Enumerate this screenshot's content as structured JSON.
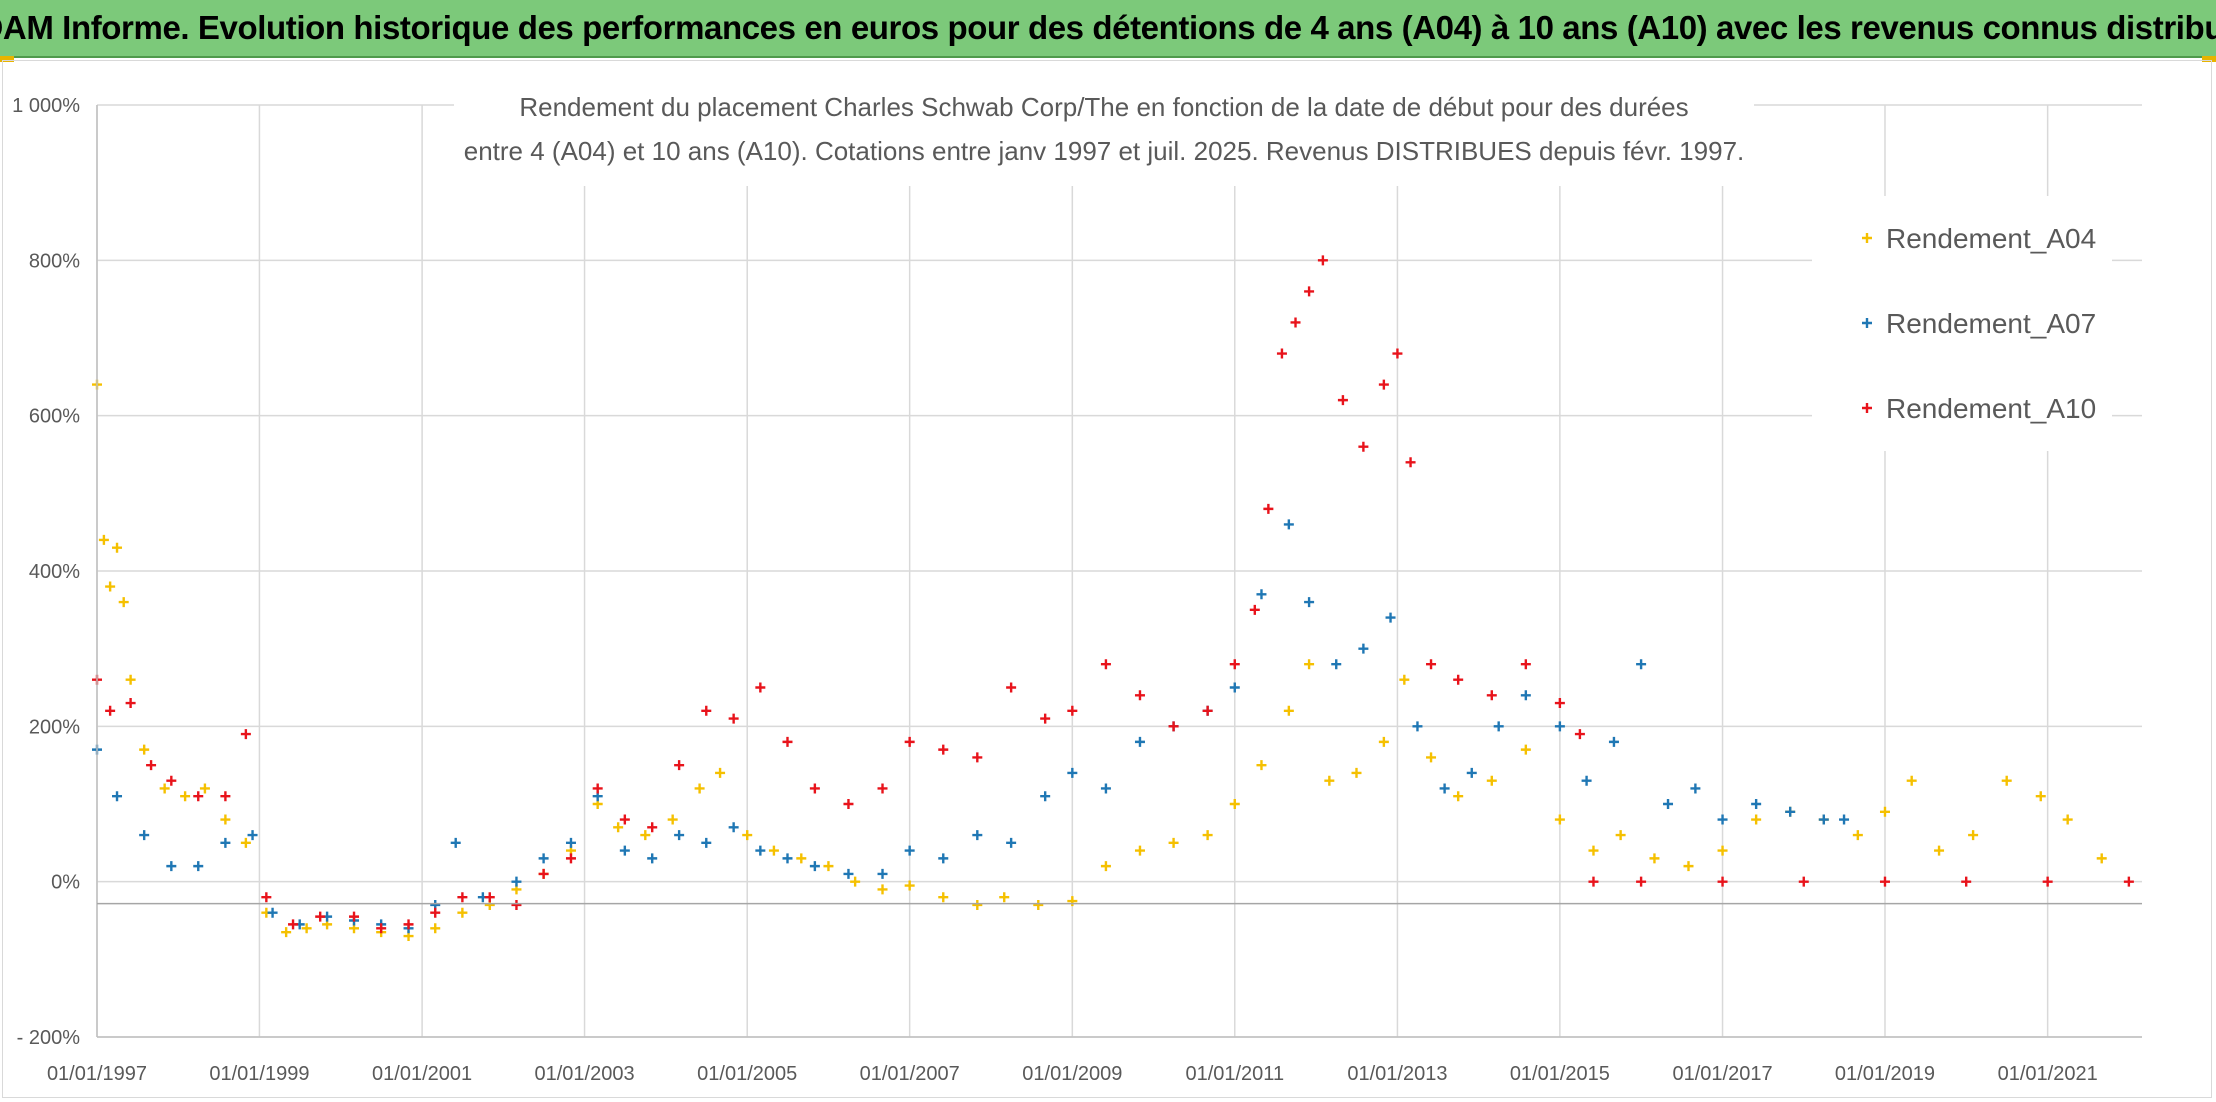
{
  "banner": {
    "title": "ADAM Informe. Evolution historique des performances en euros pour des détentions de 4 ans (A04) à 10 ans (A10) avec les revenus connus distribués"
  },
  "chart_data": {
    "type": "scatter",
    "title_lines": [
      "Rendement du placement Charles Schwab Corp/The en fonction de la date de début pour des durées",
      "entre 4 (A04) et 10 ans (A10). Cotations entre janv 1997 et juil. 2025. Revenus DISTRIBUES depuis févr. 1997."
    ],
    "xlabel": "",
    "ylabel": "",
    "xlim": [
      "1997-01-01",
      "2022-03-01"
    ],
    "ylim": [
      -200,
      1000
    ],
    "y_unit": "%",
    "y_ticks": [
      {
        "value": 1000,
        "label": "1 000%"
      },
      {
        "value": 800,
        "label": "800%"
      },
      {
        "value": 600,
        "label": "600%"
      },
      {
        "value": 400,
        "label": "400%"
      },
      {
        "value": 200,
        "label": "200%"
      },
      {
        "value": 0,
        "label": "0%"
      },
      {
        "value": -200,
        "label": "- 200%"
      }
    ],
    "x_ticks": [
      "01/01/1997",
      "01/01/1999",
      "01/01/2001",
      "01/01/2003",
      "01/01/2005",
      "01/01/2007",
      "01/01/2009",
      "01/01/2011",
      "01/01/2013",
      "01/01/2015",
      "01/01/2017",
      "01/01/2019",
      "01/01/2021"
    ],
    "grid": true,
    "marker": "+",
    "legend_position": "right",
    "series": [
      {
        "name": "Rendement_A04",
        "color": "#f5c000",
        "points": [
          [
            "1997-01-01",
            640
          ],
          [
            "1997-02-01",
            440
          ],
          [
            "1997-03-01",
            380
          ],
          [
            "1997-04-01",
            430
          ],
          [
            "1997-05-01",
            360
          ],
          [
            "1997-06-01",
            260
          ],
          [
            "1997-08-01",
            170
          ],
          [
            "1997-11-01",
            120
          ],
          [
            "1998-02-01",
            110
          ],
          [
            "1998-05-01",
            120
          ],
          [
            "1998-08-01",
            80
          ],
          [
            "1998-11-01",
            50
          ],
          [
            "1999-02-01",
            -40
          ],
          [
            "1999-05-01",
            -65
          ],
          [
            "1999-08-01",
            -60
          ],
          [
            "1999-11-01",
            -55
          ],
          [
            "2000-03-01",
            -60
          ],
          [
            "2000-07-01",
            -65
          ],
          [
            "2000-11-01",
            -70
          ],
          [
            "2001-03-01",
            -60
          ],
          [
            "2001-07-01",
            -40
          ],
          [
            "2001-11-01",
            -30
          ],
          [
            "2002-03-01",
            -10
          ],
          [
            "2002-07-01",
            10
          ],
          [
            "2002-11-01",
            40
          ],
          [
            "2003-03-01",
            100
          ],
          [
            "2003-06-01",
            70
          ],
          [
            "2003-10-01",
            60
          ],
          [
            "2004-02-01",
            80
          ],
          [
            "2004-06-01",
            120
          ],
          [
            "2004-09-01",
            140
          ],
          [
            "2005-01-01",
            60
          ],
          [
            "2005-05-01",
            40
          ],
          [
            "2005-09-01",
            30
          ],
          [
            "2006-01-01",
            20
          ],
          [
            "2006-05-01",
            0
          ],
          [
            "2006-09-01",
            -10
          ],
          [
            "2007-01-01",
            -5
          ],
          [
            "2007-06-01",
            -20
          ],
          [
            "2007-11-01",
            -30
          ],
          [
            "2008-03-01",
            -20
          ],
          [
            "2008-08-01",
            -30
          ],
          [
            "2009-01-01",
            -25
          ],
          [
            "2009-06-01",
            20
          ],
          [
            "2009-11-01",
            40
          ],
          [
            "2010-04-01",
            50
          ],
          [
            "2010-09-01",
            60
          ],
          [
            "2011-01-01",
            100
          ],
          [
            "2011-05-01",
            150
          ],
          [
            "2011-09-01",
            220
          ],
          [
            "2011-12-01",
            280
          ],
          [
            "2012-03-01",
            130
          ],
          [
            "2012-07-01",
            140
          ],
          [
            "2012-11-01",
            180
          ],
          [
            "2013-02-01",
            260
          ],
          [
            "2013-06-01",
            160
          ],
          [
            "2013-10-01",
            110
          ],
          [
            "2014-03-01",
            130
          ],
          [
            "2014-08-01",
            170
          ],
          [
            "2015-01-01",
            80
          ],
          [
            "2015-06-01",
            40
          ],
          [
            "2015-10-01",
            60
          ],
          [
            "2016-03-01",
            30
          ],
          [
            "2016-08-01",
            20
          ],
          [
            "2017-01-01",
            40
          ],
          [
            "2017-06-01",
            80
          ],
          [
            "2017-11-01",
            90
          ],
          [
            "2018-04-01",
            80
          ],
          [
            "2018-09-01",
            60
          ],
          [
            "2019-01-01",
            90
          ],
          [
            "2019-05-01",
            130
          ],
          [
            "2019-09-01",
            40
          ],
          [
            "2020-02-01",
            60
          ],
          [
            "2020-07-01",
            130
          ],
          [
            "2020-12-01",
            110
          ],
          [
            "2021-04-01",
            80
          ],
          [
            "2021-09-01",
            30
          ]
        ]
      },
      {
        "name": "Rendement_A07",
        "color": "#1f77b4",
        "points": [
          [
            "1997-01-01",
            170
          ],
          [
            "1997-04-01",
            110
          ],
          [
            "1997-08-01",
            60
          ],
          [
            "1997-12-01",
            20
          ],
          [
            "1998-04-01",
            20
          ],
          [
            "1998-08-01",
            50
          ],
          [
            "1998-12-01",
            60
          ],
          [
            "1999-03-01",
            -40
          ],
          [
            "1999-07-01",
            -55
          ],
          [
            "1999-11-01",
            -45
          ],
          [
            "2000-03-01",
            -50
          ],
          [
            "2000-07-01",
            -55
          ],
          [
            "2000-11-01",
            -60
          ],
          [
            "2001-03-01",
            -30
          ],
          [
            "2001-06-01",
            50
          ],
          [
            "2001-10-01",
            -20
          ],
          [
            "2002-03-01",
            0
          ],
          [
            "2002-07-01",
            30
          ],
          [
            "2002-11-01",
            50
          ],
          [
            "2003-03-01",
            110
          ],
          [
            "2003-07-01",
            40
          ],
          [
            "2003-11-01",
            30
          ],
          [
            "2004-03-01",
            60
          ],
          [
            "2004-07-01",
            50
          ],
          [
            "2004-11-01",
            70
          ],
          [
            "2005-03-01",
            40
          ],
          [
            "2005-07-01",
            30
          ],
          [
            "2005-11-01",
            20
          ],
          [
            "2006-04-01",
            10
          ],
          [
            "2006-09-01",
            10
          ],
          [
            "2007-01-01",
            40
          ],
          [
            "2007-06-01",
            30
          ],
          [
            "2007-11-01",
            60
          ],
          [
            "2008-04-01",
            50
          ],
          [
            "2008-09-01",
            110
          ],
          [
            "2009-01-01",
            140
          ],
          [
            "2009-06-01",
            120
          ],
          [
            "2009-11-01",
            180
          ],
          [
            "2010-04-01",
            200
          ],
          [
            "2010-09-01",
            220
          ],
          [
            "2011-01-01",
            250
          ],
          [
            "2011-05-01",
            370
          ],
          [
            "2011-09-01",
            460
          ],
          [
            "2011-12-01",
            360
          ],
          [
            "2012-04-01",
            280
          ],
          [
            "2012-08-01",
            300
          ],
          [
            "2012-12-01",
            340
          ],
          [
            "2013-04-01",
            200
          ],
          [
            "2013-08-01",
            120
          ],
          [
            "2013-12-01",
            140
          ],
          [
            "2014-04-01",
            200
          ],
          [
            "2014-08-01",
            240
          ],
          [
            "2015-01-01",
            200
          ],
          [
            "2015-05-01",
            130
          ],
          [
            "2015-09-01",
            180
          ],
          [
            "2016-01-01",
            280
          ],
          [
            "2016-05-01",
            100
          ],
          [
            "2016-09-01",
            120
          ],
          [
            "2017-01-01",
            80
          ],
          [
            "2017-06-01",
            100
          ],
          [
            "2017-11-01",
            90
          ],
          [
            "2018-04-01",
            80
          ],
          [
            "2018-07-01",
            80
          ]
        ]
      },
      {
        "name": "Rendement_A10",
        "color": "#e8131b",
        "points": [
          [
            "1997-01-01",
            260
          ],
          [
            "1997-03-01",
            220
          ],
          [
            "1997-06-01",
            230
          ],
          [
            "1997-09-01",
            150
          ],
          [
            "1997-12-01",
            130
          ],
          [
            "1998-04-01",
            110
          ],
          [
            "1998-08-01",
            110
          ],
          [
            "1998-11-01",
            190
          ],
          [
            "1999-02-01",
            -20
          ],
          [
            "1999-06-01",
            -55
          ],
          [
            "1999-10-01",
            -45
          ],
          [
            "2000-03-01",
            -45
          ],
          [
            "2000-07-01",
            -60
          ],
          [
            "2000-11-01",
            -55
          ],
          [
            "2001-03-01",
            -40
          ],
          [
            "2001-07-01",
            -20
          ],
          [
            "2001-11-01",
            -20
          ],
          [
            "2002-03-01",
            -30
          ],
          [
            "2002-07-01",
            10
          ],
          [
            "2002-11-01",
            30
          ],
          [
            "2003-03-01",
            120
          ],
          [
            "2003-07-01",
            80
          ],
          [
            "2003-11-01",
            70
          ],
          [
            "2004-03-01",
            150
          ],
          [
            "2004-07-01",
            220
          ],
          [
            "2004-11-01",
            210
          ],
          [
            "2005-03-01",
            250
          ],
          [
            "2005-07-01",
            180
          ],
          [
            "2005-11-01",
            120
          ],
          [
            "2006-04-01",
            100
          ],
          [
            "2006-09-01",
            120
          ],
          [
            "2007-01-01",
            180
          ],
          [
            "2007-06-01",
            170
          ],
          [
            "2007-11-01",
            160
          ],
          [
            "2008-04-01",
            250
          ],
          [
            "2008-09-01",
            210
          ],
          [
            "2009-01-01",
            220
          ],
          [
            "2009-06-01",
            280
          ],
          [
            "2009-11-01",
            240
          ],
          [
            "2010-04-01",
            200
          ],
          [
            "2010-09-01",
            220
          ],
          [
            "2011-01-01",
            280
          ],
          [
            "2011-04-01",
            350
          ],
          [
            "2011-06-01",
            480
          ],
          [
            "2011-08-01",
            680
          ],
          [
            "2011-10-01",
            720
          ],
          [
            "2011-12-01",
            760
          ],
          [
            "2012-02-01",
            800
          ],
          [
            "2012-05-01",
            620
          ],
          [
            "2012-08-01",
            560
          ],
          [
            "2012-11-01",
            640
          ],
          [
            "2013-01-01",
            680
          ],
          [
            "2013-03-01",
            540
          ],
          [
            "2013-06-01",
            280
          ],
          [
            "2013-10-01",
            260
          ],
          [
            "2014-03-01",
            240
          ],
          [
            "2014-08-01",
            280
          ],
          [
            "2015-01-01",
            230
          ],
          [
            "2015-04-01",
            190
          ],
          [
            "2015-06-01",
            0
          ],
          [
            "2016-01-01",
            0
          ],
          [
            "2017-01-01",
            0
          ],
          [
            "2018-01-01",
            0
          ],
          [
            "2019-01-01",
            0
          ],
          [
            "2020-01-01",
            0
          ],
          [
            "2021-01-01",
            0
          ],
          [
            "2022-01-01",
            0
          ]
        ]
      }
    ]
  }
}
